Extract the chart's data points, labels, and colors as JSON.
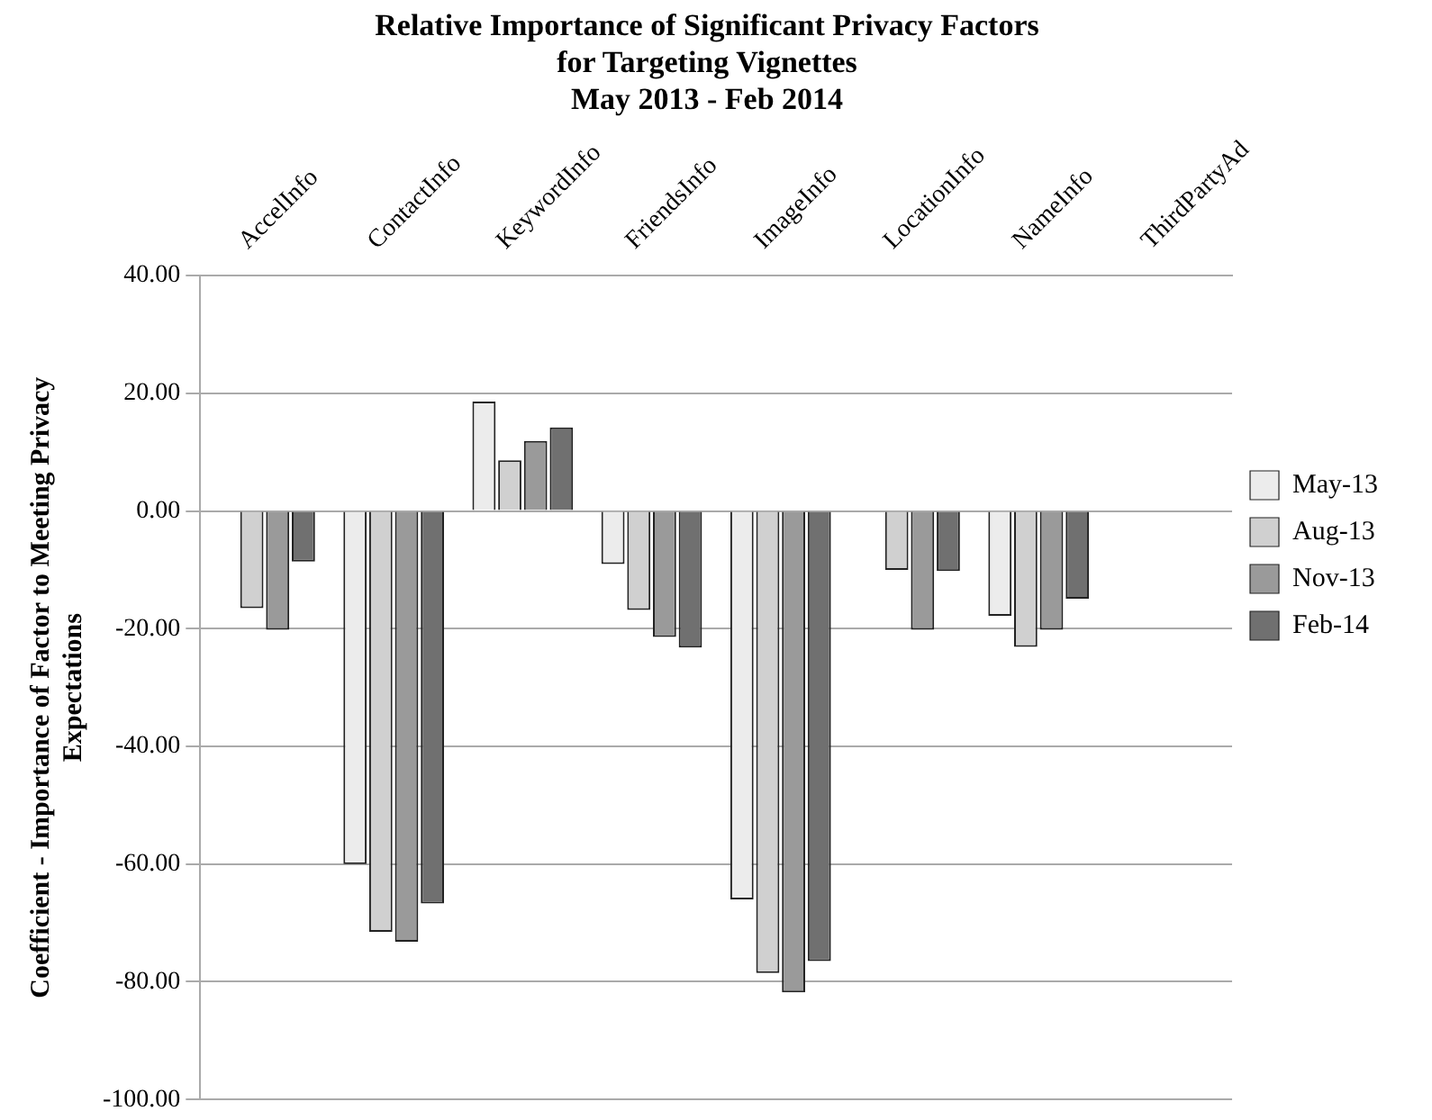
{
  "chart_data": {
    "type": "bar",
    "title": "Relative Importance of Significant Privacy Factors\nfor Targeting Vignettes\nMay 2013 - Feb 2014",
    "ylabel": "Coefficient - Importance of Factor to Meeting Privacy\nExpectations",
    "categories": [
      "AccelInfo",
      "ContactInfo",
      "KeywordInfo",
      "FriendsInfo",
      "ImageInfo",
      "LocationInfo",
      "NameInfo",
      "ThirdPartyAd"
    ],
    "series": [
      {
        "name": "May-13",
        "color": "#ececec",
        "values": [
          null,
          -60,
          18.6,
          -9,
          -66,
          null,
          -17.8,
          null
        ]
      },
      {
        "name": "Aug-13",
        "color": "#d0d0d0",
        "values": [
          -16.5,
          -71.5,
          8.6,
          -16.8,
          -78.5,
          -10,
          -23.1,
          null
        ]
      },
      {
        "name": "Nov-13",
        "color": "#9a9a9a",
        "values": [
          -20.2,
          -73.2,
          11.9,
          -21.4,
          -81.8,
          -20.2,
          -20.2,
          null
        ]
      },
      {
        "name": "Feb-14",
        "color": "#707070",
        "values": [
          -8.6,
          -66.7,
          14.2,
          -23.2,
          -76.5,
          -10.2,
          -14.9,
          null
        ]
      }
    ],
    "ylim": [
      -100,
      40
    ],
    "yticks": [
      {
        "value": -100,
        "label": "-100.00"
      },
      {
        "value": -80,
        "label": "-80.00"
      },
      {
        "value": -60,
        "label": "-60.00"
      },
      {
        "value": -40,
        "label": "-40.00"
      },
      {
        "value": -20,
        "label": "-20.00"
      },
      {
        "value": 0,
        "label": "0.00"
      },
      {
        "value": 20,
        "label": "20.00"
      },
      {
        "value": 40,
        "label": "40.00"
      }
    ],
    "grid": "y",
    "legend": "right"
  }
}
